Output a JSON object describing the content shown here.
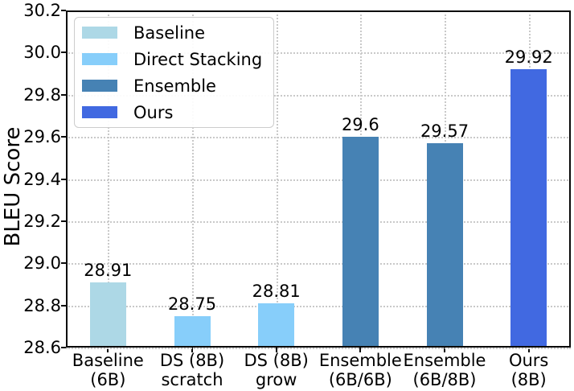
{
  "chart_data": {
    "type": "bar",
    "title": "",
    "xlabel": "",
    "ylabel": "BLEU Score",
    "ylim": [
      28.6,
      30.2
    ],
    "yticks": [
      "28.6",
      "28.8",
      "29.0",
      "29.2",
      "29.4",
      "29.6",
      "29.8",
      "30.0",
      "30.2"
    ],
    "grid": "dotted",
    "legend_position": "upper left",
    "categories": [
      "Baseline\n(6B)",
      "DS (8B)\nscratch",
      "DS (8B)\ngrow",
      "Ensemble\n(6B/6B)",
      "Ensemble\n(6B/8B)",
      "Ours\n(8B)"
    ],
    "bars": [
      {
        "category": "Baseline\n(6B)",
        "series": "Baseline",
        "value": 28.91,
        "value_label": "28.91",
        "color": "#ADD8E6"
      },
      {
        "category": "DS (8B)\nscratch",
        "series": "Direct Stacking",
        "value": 28.75,
        "value_label": "28.75",
        "color": "#87CEFA"
      },
      {
        "category": "DS (8B)\ngrow",
        "series": "Direct Stacking",
        "value": 28.81,
        "value_label": "28.81",
        "color": "#87CEFA"
      },
      {
        "category": "Ensemble\n(6B/6B)",
        "series": "Ensemble",
        "value": 29.6,
        "value_label": "29.6",
        "color": "#4682B4"
      },
      {
        "category": "Ensemble\n(6B/8B)",
        "series": "Ensemble",
        "value": 29.57,
        "value_label": "29.57",
        "color": "#4682B4"
      },
      {
        "category": "Ours\n(8B)",
        "series": "Ours",
        "value": 29.92,
        "value_label": "29.92",
        "color": "#4169E1"
      }
    ],
    "legend": [
      {
        "label": "Baseline",
        "color": "#ADD8E6"
      },
      {
        "label": "Direct Stacking",
        "color": "#87CEFA"
      },
      {
        "label": "Ensemble",
        "color": "#4682B4"
      },
      {
        "label": "Ours",
        "color": "#4169E1"
      }
    ]
  },
  "colors": {
    "axis": "#0a0a0a",
    "grid": "#c9c9c9",
    "text": "#000000",
    "legend_border": "#cccccc"
  }
}
